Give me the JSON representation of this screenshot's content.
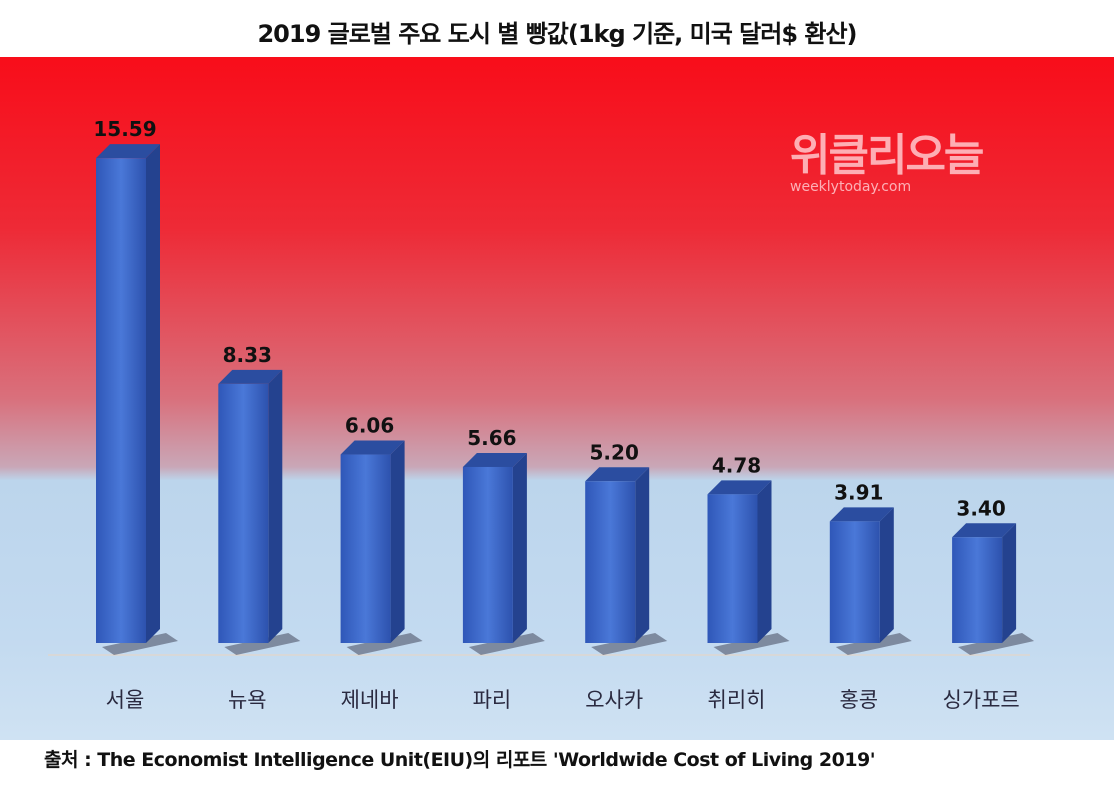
{
  "chart_data": {
    "type": "bar",
    "title": "2019 글로벌 주요 도시 별 빵값(1kg 기준, 미국 달러$ 환산)",
    "categories": [
      "서울",
      "뉴욕",
      "제네바",
      "파리",
      "오사카",
      "취리히",
      "홍콩",
      "싱가포르"
    ],
    "values": [
      15.59,
      8.33,
      6.06,
      5.66,
      5.2,
      4.78,
      3.91,
      3.4
    ],
    "data_labels": [
      "15.59",
      "8.33",
      "6.06",
      "5.66",
      "5.20",
      "4.78",
      "3.91",
      "3.40"
    ],
    "xlabel": "",
    "ylabel": "",
    "ylim": [
      0,
      16
    ],
    "grid": false,
    "style": "3d",
    "colors": {
      "bar": "#3d68cc",
      "background_top": "#f80d1a",
      "background_bottom": "#cfe2f3"
    }
  },
  "watermark": {
    "name": "위클리오늘",
    "url": "weeklytoday.com"
  },
  "source": "출처 : The Economist Intelligence Unit(EIU)의 리포트 'Worldwide Cost of Living 2019'"
}
